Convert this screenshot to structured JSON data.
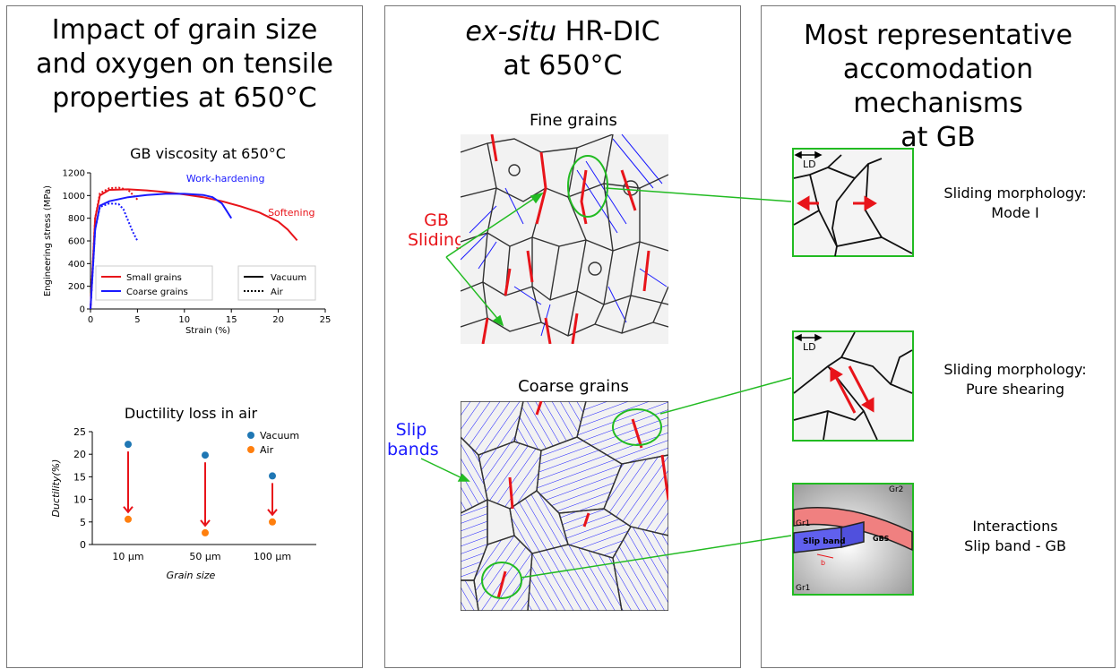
{
  "panel1": {
    "title": [
      "Impact of grain size",
      "and oxygen on tensile",
      "properties at 650°C"
    ],
    "chart1_title": "GB viscosity at 650°C",
    "chart2_title": "Ductility loss in air"
  },
  "panel2": {
    "title_italic": "ex-situ",
    "title_rest": " HR-DIC",
    "title_line2": "at 650°C",
    "fine_label": "Fine grains",
    "coarse_label": "Coarse grains",
    "gb_sliding": [
      "GB",
      "Sliding"
    ],
    "slip_bands": [
      "Slip",
      "bands"
    ]
  },
  "panel3": {
    "title": [
      "Most representative",
      "accomodation mechanisms",
      "at GB"
    ],
    "ld_label": "LD",
    "mech1": [
      "Sliding morphology:",
      "Mode I"
    ],
    "mech2": [
      "Sliding morphology:",
      "Pure shearing"
    ],
    "mech3": [
      "Interactions",
      "Slip band - GB"
    ],
    "schematic_labels": {
      "gr2": "Gr2",
      "gr1_top": "Gr1",
      "gr1_bottom": "Gr1",
      "slip_band": "Slip band",
      "gbs": "GBS",
      "b": "b"
    }
  },
  "colors": {
    "red": "#e8141a",
    "blue": "#1a1aff",
    "orange": "#ff7f0e",
    "steelblue": "#1f77b4",
    "green": "#22bb22"
  },
  "chart_data": [
    {
      "type": "line",
      "title": "GB viscosity at 650°C",
      "xlabel": "Strain (%)",
      "ylabel": "Engineering stress (MPa)",
      "xlim": [
        0,
        25
      ],
      "ylim": [
        0,
        1200
      ],
      "xticks": [
        0,
        5,
        10,
        15,
        20,
        25
      ],
      "yticks": [
        0,
        200,
        400,
        600,
        800,
        1000,
        1200
      ],
      "annotations": [
        "Work-hardening",
        "Softening"
      ],
      "legend_colors": [
        "Small grains",
        "Coarse grains"
      ],
      "legend_styles": [
        "Vacuum",
        "Air"
      ],
      "series": [
        {
          "name": "Small grains",
          "condition": "Vacuum",
          "color": "#e8141a",
          "dash": false,
          "x": [
            0,
            0.5,
            1,
            2,
            4,
            6,
            8,
            10,
            12,
            14,
            16,
            18,
            20,
            21,
            22
          ],
          "y": [
            0,
            800,
            1000,
            1050,
            1055,
            1045,
            1030,
            1010,
            985,
            950,
            905,
            850,
            770,
            700,
            605
          ]
        },
        {
          "name": "Small grains",
          "condition": "Air",
          "color": "#e8141a",
          "dash": true,
          "x": [
            0,
            0.5,
            1,
            2,
            3,
            4,
            5
          ],
          "y": [
            0,
            800,
            1020,
            1065,
            1070,
            1050,
            965
          ]
        },
        {
          "name": "Coarse grains",
          "condition": "Vacuum",
          "color": "#1a1aff",
          "dash": false,
          "x": [
            0,
            0.5,
            1,
            2,
            4,
            6,
            8,
            10,
            12,
            13,
            14,
            15
          ],
          "y": [
            0,
            700,
            910,
            950,
            985,
            1005,
            1015,
            1015,
            1005,
            985,
            930,
            800
          ]
        },
        {
          "name": "Coarse grains",
          "condition": "Air",
          "color": "#1a1aff",
          "dash": true,
          "x": [
            0,
            0.5,
            1,
            2,
            3,
            3.5,
            4,
            4.5,
            5
          ],
          "y": [
            0,
            700,
            900,
            930,
            925,
            880,
            780,
            680,
            600
          ]
        }
      ]
    },
    {
      "type": "scatter",
      "title": "Ductility loss in air",
      "xlabel": "Grain size",
      "ylabel": "Ductility(%)",
      "categories": [
        "10 μm",
        "50 μm",
        "100 μm"
      ],
      "ylim": [
        0,
        25
      ],
      "yticks": [
        0,
        5,
        10,
        15,
        20,
        25
      ],
      "legend": "top-right",
      "series": [
        {
          "name": "Vacuum",
          "color": "#1f77b4",
          "values": [
            22.2,
            19.8,
            15.2
          ]
        },
        {
          "name": "Air",
          "color": "#ff7f0e",
          "values": [
            5.6,
            2.6,
            5.0
          ]
        }
      ]
    }
  ]
}
